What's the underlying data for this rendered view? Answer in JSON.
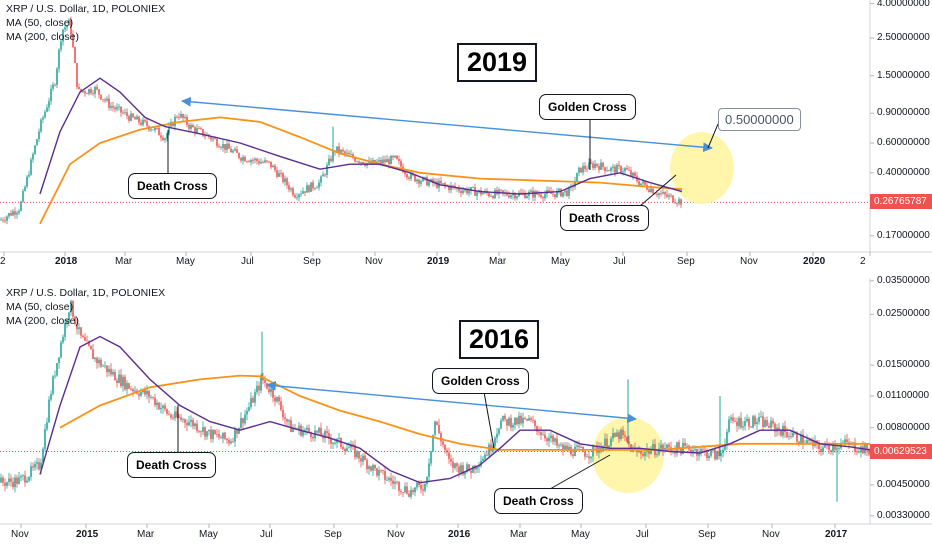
{
  "colors": {
    "up": "#26a69a",
    "down": "#ef5350",
    "ma50": "#5b2d90",
    "ma200": "#f7931a",
    "arrow": "#4a90d9",
    "highlight": "#fff59d"
  },
  "chart_data": [
    {
      "type": "candlestick",
      "title": "XRP / U.S. Dollar, 1D, POLONIEX",
      "legend": [
        "MA (50, close)",
        "MA (200, close)"
      ],
      "annotation_year": "2019",
      "scale": "log",
      "y_ticks": [
        "4.00000000",
        "2.50000000",
        "1.50000000",
        "0.90000000",
        "0.60000000",
        "0.40000000",
        "0.17000000"
      ],
      "y_tick_values": [
        4.0,
        2.5,
        1.5,
        0.9,
        0.6,
        0.4,
        0.17
      ],
      "last_price": "0.26765787",
      "last_price_value": 0.26765787,
      "x_ticks": [
        "2",
        "2018",
        "Mar",
        "May",
        "Jul",
        "Sep",
        "Nov",
        "2019",
        "Mar",
        "May",
        "Jul",
        "Sep",
        "Nov",
        "2020",
        "2"
      ],
      "bold_x_ticks": [
        "2018",
        "2019",
        "2020"
      ],
      "callouts": [
        "Death Cross",
        "Golden Cross",
        "Death Cross"
      ],
      "target_label": "0.50000000",
      "ylim": [
        0.14,
        4.2
      ],
      "price_path": [
        [
          0,
          0.21
        ],
        [
          20,
          0.25
        ],
        [
          40,
          0.75
        ],
        [
          55,
          1.4
        ],
        [
          62,
          2.8
        ],
        [
          70,
          3.1
        ],
        [
          78,
          1.2
        ],
        [
          95,
          1.25
        ],
        [
          110,
          1.0
        ],
        [
          130,
          0.85
        ],
        [
          150,
          0.75
        ],
        [
          165,
          0.65
        ],
        [
          178,
          0.9
        ],
        [
          190,
          0.75
        ],
        [
          210,
          0.65
        ],
        [
          240,
          0.5
        ],
        [
          270,
          0.45
        ],
        [
          295,
          0.3
        ],
        [
          320,
          0.35
        ],
        [
          335,
          0.55
        ],
        [
          350,
          0.5
        ],
        [
          370,
          0.45
        ],
        [
          395,
          0.48
        ],
        [
          410,
          0.38
        ],
        [
          430,
          0.35
        ],
        [
          460,
          0.32
        ],
        [
          490,
          0.3
        ],
        [
          520,
          0.3
        ],
        [
          550,
          0.3
        ],
        [
          570,
          0.31
        ],
        [
          580,
          0.42
        ],
        [
          595,
          0.45
        ],
        [
          610,
          0.42
        ],
        [
          625,
          0.42
        ],
        [
          640,
          0.35
        ],
        [
          660,
          0.3
        ],
        [
          682,
          0.27
        ]
      ],
      "ma50_path": [
        [
          40,
          0.3
        ],
        [
          60,
          0.7
        ],
        [
          80,
          1.2
        ],
        [
          100,
          1.45
        ],
        [
          120,
          1.2
        ],
        [
          145,
          0.85
        ],
        [
          165,
          0.75
        ],
        [
          200,
          0.68
        ],
        [
          240,
          0.6
        ],
        [
          280,
          0.5
        ],
        [
          320,
          0.42
        ],
        [
          350,
          0.45
        ],
        [
          380,
          0.45
        ],
        [
          410,
          0.4
        ],
        [
          440,
          0.34
        ],
        [
          480,
          0.31
        ],
        [
          520,
          0.3
        ],
        [
          560,
          0.31
        ],
        [
          590,
          0.37
        ],
        [
          620,
          0.4
        ],
        [
          650,
          0.35
        ],
        [
          682,
          0.31
        ]
      ],
      "ma200_path": [
        [
          40,
          0.2
        ],
        [
          70,
          0.45
        ],
        [
          100,
          0.6
        ],
        [
          140,
          0.72
        ],
        [
          180,
          0.8
        ],
        [
          220,
          0.85
        ],
        [
          260,
          0.8
        ],
        [
          300,
          0.65
        ],
        [
          340,
          0.52
        ],
        [
          380,
          0.45
        ],
        [
          420,
          0.4
        ],
        [
          480,
          0.37
        ],
        [
          540,
          0.36
        ],
        [
          600,
          0.35
        ],
        [
          650,
          0.33
        ],
        [
          682,
          0.32
        ]
      ]
    },
    {
      "type": "candlestick",
      "title": "XRP / U.S. Dollar, 1D, POLONIEX",
      "legend": [
        "MA (50, close)",
        "MA (200, close)"
      ],
      "annotation_year": "2016",
      "scale": "log",
      "y_ticks": [
        "0.03500000",
        "0.02500000",
        "0.01500000",
        "0.01100000",
        "0.00800000",
        "0.00450000",
        "0.00330000"
      ],
      "y_tick_values": [
        0.035,
        0.025,
        0.015,
        0.011,
        0.008,
        0.0045,
        0.0033
      ],
      "last_price": "0.00629523",
      "last_price_value": 0.00629523,
      "x_ticks": [
        "Nov",
        "2015",
        "Mar",
        "May",
        "Jul",
        "Sep",
        "Nov",
        "2016",
        "Mar",
        "May",
        "Jul",
        "Sep",
        "Nov",
        "2017"
      ],
      "bold_x_ticks": [
        "2015",
        "2016",
        "2017"
      ],
      "callouts": [
        "Death Cross",
        "Golden Cross",
        "Death Cross"
      ],
      "ylim": [
        0.0031,
        0.036
      ],
      "price_path": [
        [
          0,
          0.0046
        ],
        [
          20,
          0.0047
        ],
        [
          40,
          0.0055
        ],
        [
          50,
          0.011
        ],
        [
          60,
          0.018
        ],
        [
          70,
          0.028
        ],
        [
          80,
          0.02
        ],
        [
          95,
          0.016
        ],
        [
          110,
          0.014
        ],
        [
          130,
          0.012
        ],
        [
          150,
          0.011
        ],
        [
          170,
          0.009
        ],
        [
          190,
          0.0085
        ],
        [
          210,
          0.0075
        ],
        [
          230,
          0.007
        ],
        [
          250,
          0.01
        ],
        [
          262,
          0.013
        ],
        [
          275,
          0.011
        ],
        [
          290,
          0.008
        ],
        [
          320,
          0.0075
        ],
        [
          350,
          0.0065
        ],
        [
          380,
          0.005
        ],
        [
          410,
          0.0042
        ],
        [
          425,
          0.0045
        ],
        [
          435,
          0.0085
        ],
        [
          450,
          0.0055
        ],
        [
          470,
          0.0052
        ],
        [
          490,
          0.0065
        ],
        [
          500,
          0.0085
        ],
        [
          530,
          0.0085
        ],
        [
          560,
          0.0065
        ],
        [
          590,
          0.0062
        ],
        [
          620,
          0.0075
        ],
        [
          635,
          0.0062
        ],
        [
          660,
          0.0065
        ],
        [
          690,
          0.0065
        ],
        [
          720,
          0.006
        ],
        [
          730,
          0.0085
        ],
        [
          760,
          0.0085
        ],
        [
          790,
          0.0075
        ],
        [
          820,
          0.0065
        ],
        [
          845,
          0.0068
        ],
        [
          870,
          0.0063
        ]
      ],
      "ma50_path": [
        [
          40,
          0.005
        ],
        [
          60,
          0.01
        ],
        [
          80,
          0.018
        ],
        [
          100,
          0.02
        ],
        [
          120,
          0.018
        ],
        [
          150,
          0.013
        ],
        [
          180,
          0.01
        ],
        [
          210,
          0.0085
        ],
        [
          240,
          0.0078
        ],
        [
          270,
          0.0085
        ],
        [
          300,
          0.0078
        ],
        [
          330,
          0.0072
        ],
        [
          360,
          0.0065
        ],
        [
          390,
          0.0052
        ],
        [
          420,
          0.0046
        ],
        [
          450,
          0.0048
        ],
        [
          480,
          0.0055
        ],
        [
          500,
          0.0065
        ],
        [
          520,
          0.0078
        ],
        [
          550,
          0.0078
        ],
        [
          580,
          0.0068
        ],
        [
          610,
          0.0065
        ],
        [
          640,
          0.0065
        ],
        [
          670,
          0.0063
        ],
        [
          700,
          0.0062
        ],
        [
          730,
          0.0068
        ],
        [
          760,
          0.0078
        ],
        [
          790,
          0.0078
        ],
        [
          820,
          0.0068
        ],
        [
          850,
          0.0066
        ],
        [
          870,
          0.0064
        ]
      ],
      "ma200_path": [
        [
          60,
          0.008
        ],
        [
          100,
          0.01
        ],
        [
          150,
          0.012
        ],
        [
          200,
          0.013
        ],
        [
          240,
          0.0135
        ],
        [
          260,
          0.0134
        ],
        [
          300,
          0.011
        ],
        [
          340,
          0.0095
        ],
        [
          380,
          0.0085
        ],
        [
          420,
          0.0075
        ],
        [
          460,
          0.0068
        ],
        [
          500,
          0.0064
        ],
        [
          540,
          0.0064
        ],
        [
          580,
          0.0064
        ],
        [
          620,
          0.0064
        ],
        [
          660,
          0.0064
        ],
        [
          700,
          0.0066
        ],
        [
          740,
          0.0068
        ],
        [
          780,
          0.0068
        ],
        [
          820,
          0.0068
        ],
        [
          870,
          0.0068
        ]
      ]
    }
  ]
}
